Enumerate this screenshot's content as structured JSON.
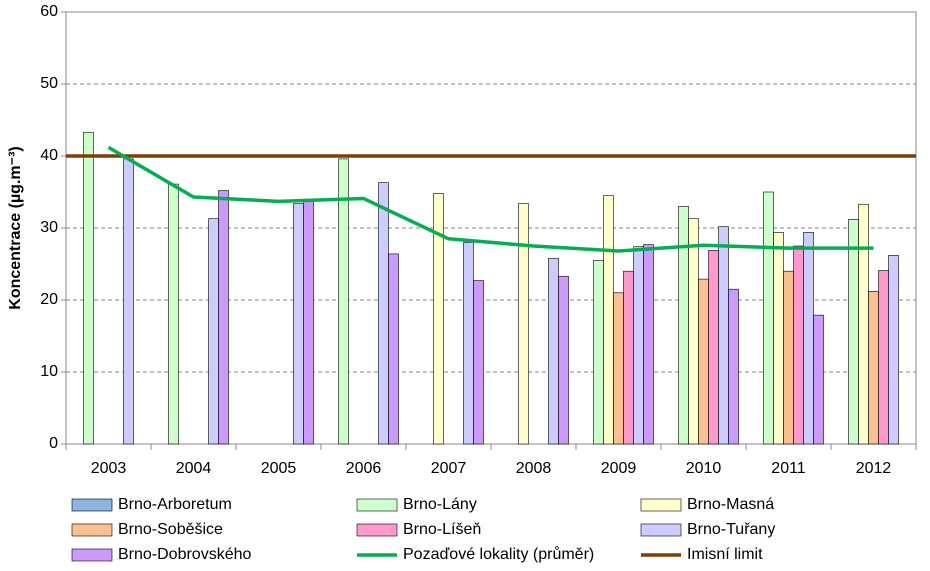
{
  "chart_data": {
    "type": "bar",
    "y_label": "Koncentrace (µg.m⁻³)",
    "categories": [
      "2003",
      "2004",
      "2005",
      "2006",
      "2007",
      "2008",
      "2009",
      "2010",
      "2011",
      "2012"
    ],
    "ylim": [
      0,
      60
    ],
    "yticks": [
      0,
      10,
      20,
      30,
      40,
      50,
      60
    ],
    "grid": true,
    "series": [
      {
        "name": "Brno-Arboretum",
        "color": "#8db4e2",
        "values": [
          null,
          null,
          null,
          null,
          null,
          null,
          null,
          null,
          null,
          null
        ]
      },
      {
        "name": "Brno-Lány",
        "color": "#ccffcc",
        "values": [
          43.3,
          36.1,
          null,
          39.6,
          null,
          null,
          25.5,
          33,
          35,
          31.2
        ]
      },
      {
        "name": "Brno-Masná",
        "color": "#ffffcc",
        "values": [
          null,
          null,
          null,
          null,
          34.8,
          33.4,
          34.5,
          31.3,
          29.4,
          33.3
        ]
      },
      {
        "name": "Brno-Soběšice",
        "color": "#fac090",
        "values": [
          null,
          null,
          null,
          null,
          null,
          null,
          21,
          22.9,
          24,
          21.2
        ]
      },
      {
        "name": "Brno-Líšeň",
        "color": "#ff99cc",
        "values": [
          null,
          null,
          null,
          null,
          null,
          null,
          24,
          26.9,
          27.5,
          24.1
        ]
      },
      {
        "name": "Brno-Tuřany",
        "color": "#ccccff",
        "values": [
          39.6,
          31.3,
          33.4,
          36.3,
          28,
          25.8,
          27.4,
          30.2,
          29.4,
          26.2
        ]
      },
      {
        "name": "Brno-Dobrovského",
        "color": "#cc99ff",
        "values": [
          null,
          35.2,
          34,
          26.4,
          22.7,
          23.3,
          27.7,
          21.5,
          17.9,
          null
        ]
      },
      {
        "name": "Pozaďové lokality (průměr)",
        "color": "#00b050",
        "type": "line",
        "values": [
          41.2,
          34.3,
          33.7,
          34.1,
          28.5,
          27.5,
          26.8,
          27.6,
          27.2,
          27.2
        ]
      }
    ],
    "limit": {
      "name": "Imisní limit",
      "color": "#7f3f00",
      "value": 40
    }
  }
}
